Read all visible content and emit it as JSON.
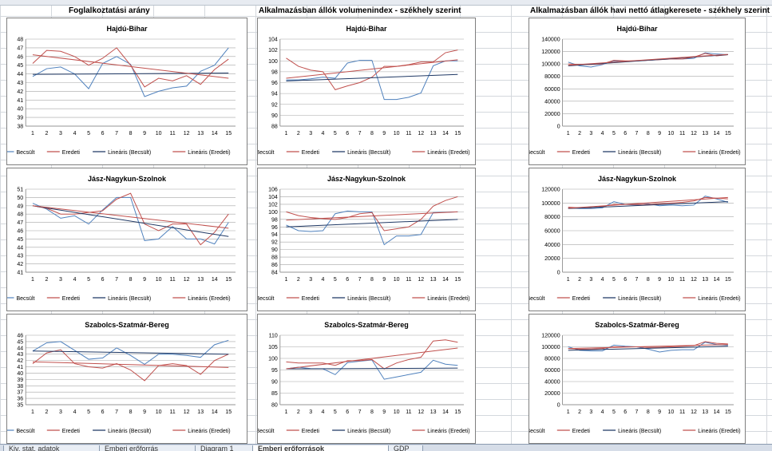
{
  "sections": [
    {
      "title": "Foglalkoztatási arány"
    },
    {
      "title": "Alkalmazásban állók volumenindex - székhely szerint"
    },
    {
      "title": "Alkalmazásban állók havi nettó átlagkeresete - székhely szerint"
    }
  ],
  "tabs": [
    "Kiv. stat. adatok",
    "Emberi erőforrás",
    "Diagram 1",
    "Emberi erőforrások",
    "GDP"
  ],
  "chart_data": [
    {
      "type": "line",
      "title": "Hajdú-Bihar",
      "x": [
        1,
        2,
        3,
        4,
        5,
        6,
        7,
        8,
        9,
        10,
        11,
        12,
        13,
        14,
        15
      ],
      "ylim": [
        38,
        48
      ],
      "yticks": [
        38,
        39,
        40,
        41,
        42,
        43,
        44,
        45,
        46,
        47,
        48
      ],
      "series": [
        {
          "name": "Becsült",
          "color": "#4f81bd",
          "values": [
            43.7,
            44.6,
            44.8,
            44.0,
            42.3,
            45.2,
            46.0,
            45.1,
            41.4,
            42.0,
            42.4,
            42.6,
            44.3,
            45.0,
            47.0
          ]
        },
        {
          "name": "Eredeti",
          "color": "#c0504d",
          "values": [
            45.2,
            46.7,
            46.6,
            46.0,
            45.0,
            45.8,
            47.0,
            45.0,
            42.5,
            43.5,
            43.2,
            43.8,
            42.8,
            44.5,
            45.7
          ]
        },
        {
          "name": "Lineáris (Becsült)",
          "color": "#1f3864",
          "trend": [
            43.95,
            44.1
          ]
        },
        {
          "name": "Lineáris (Eredeti)",
          "color": "#c0504d",
          "trend": [
            46.2,
            43.5
          ]
        }
      ]
    },
    {
      "type": "line",
      "title": "Hajdú-Bihar",
      "x": [
        1,
        2,
        3,
        4,
        5,
        6,
        7,
        8,
        9,
        10,
        11,
        12,
        13,
        14,
        15
      ],
      "ylim": [
        88,
        104
      ],
      "yticks": [
        88,
        90,
        92,
        94,
        96,
        98,
        100,
        102,
        104
      ],
      "series": [
        {
          "name": "Becsült",
          "color": "#4f81bd",
          "values": [
            96.5,
            96.5,
            96.7,
            97.0,
            96.8,
            99.6,
            100.1,
            100.1,
            92.9,
            92.9,
            93.3,
            94.1,
            99.1,
            100.0,
            100.0
          ]
        },
        {
          "name": "Eredeti",
          "color": "#c0504d",
          "values": [
            100.5,
            99.0,
            98.3,
            98.0,
            94.7,
            95.4,
            96.0,
            97.0,
            99.0,
            99.0,
            99.3,
            99.8,
            99.8,
            101.5,
            102.0
          ]
        },
        {
          "name": "Lineáris (Becsült)",
          "color": "#1f3864",
          "trend": [
            96.3,
            97.5
          ]
        },
        {
          "name": "Lineáris (Eredeti)",
          "color": "#c0504d",
          "trend": [
            96.8,
            100.2
          ]
        }
      ]
    },
    {
      "type": "line",
      "title": "Hajdú-Bihar",
      "x": [
        1,
        2,
        3,
        4,
        5,
        6,
        7,
        8,
        9,
        10,
        11,
        12,
        13,
        14,
        15
      ],
      "ylim": [
        0,
        140000
      ],
      "yticks": [
        0,
        20000,
        40000,
        60000,
        80000,
        100000,
        120000,
        140000
      ],
      "series": [
        {
          "name": "Becsült",
          "color": "#4f81bd",
          "values": [
            103000,
            97000,
            95000,
            99000,
            105000,
            104000,
            105000,
            106000,
            107000,
            108000,
            108000,
            109000,
            118000,
            116000,
            115000
          ]
        },
        {
          "name": "Eredeti",
          "color": "#c0504d",
          "values": [
            100000,
            99000,
            99000,
            100000,
            106000,
            105000,
            105000,
            106000,
            107000,
            108000,
            108000,
            111000,
            117000,
            113000,
            115000
          ]
        },
        {
          "name": "Lineáris (Becsült)",
          "color": "#1f3864",
          "trend": [
            97000,
            115000
          ]
        },
        {
          "name": "Lineáris (Eredeti)",
          "color": "#c0504d",
          "trend": [
            98000,
            115500
          ]
        }
      ]
    },
    {
      "type": "line",
      "title": "Jász-Nagykun-Szolnok",
      "x": [
        1,
        2,
        3,
        4,
        5,
        6,
        7,
        8,
        9,
        10,
        11,
        12,
        13,
        14,
        15
      ],
      "ylim": [
        41,
        51
      ],
      "yticks": [
        41,
        42,
        43,
        44,
        45,
        46,
        47,
        48,
        49,
        50,
        51
      ],
      "series": [
        {
          "name": "Becsült",
          "color": "#4f81bd",
          "values": [
            49.3,
            48.6,
            47.5,
            47.8,
            46.8,
            48.5,
            50.0,
            50.0,
            44.8,
            45.0,
            46.5,
            45.0,
            45.0,
            44.4,
            47.0
          ]
        },
        {
          "name": "Eredeti",
          "color": "#c0504d",
          "values": [
            49.0,
            48.7,
            48.0,
            48.0,
            48.2,
            48.4,
            49.8,
            50.5,
            46.8,
            46.0,
            46.8,
            46.8,
            44.3,
            45.8,
            48.0
          ]
        },
        {
          "name": "Lineáris (Becsült)",
          "color": "#1f3864",
          "trend": [
            49.0,
            45.3
          ]
        },
        {
          "name": "Lineáris (Eredeti)",
          "color": "#c0504d",
          "trend": [
            49.0,
            46.3
          ]
        }
      ]
    },
    {
      "type": "line",
      "title": "Jász-Nagykun-Szolnok",
      "x": [
        1,
        2,
        3,
        4,
        5,
        6,
        7,
        8,
        9,
        10,
        11,
        12,
        13,
        14,
        15
      ],
      "ylim": [
        84,
        106
      ],
      "yticks": [
        84,
        86,
        88,
        90,
        92,
        94,
        96,
        98,
        100,
        102,
        104,
        106
      ],
      "series": [
        {
          "name": "Becsült",
          "color": "#4f81bd",
          "values": [
            96.5,
            95.0,
            94.8,
            95.0,
            99.5,
            100.2,
            100.0,
            100.0,
            91.3,
            93.6,
            93.6,
            94.0,
            99.8,
            99.9,
            100.0
          ]
        },
        {
          "name": "Eredeti",
          "color": "#c0504d",
          "values": [
            100.0,
            99.0,
            98.5,
            98.2,
            98.0,
            98.5,
            99.5,
            99.8,
            95.0,
            95.5,
            96.0,
            98.0,
            101.5,
            103.0,
            104.0
          ]
        },
        {
          "name": "Lineáris (Becsült)",
          "color": "#1f3864",
          "trend": [
            96.0,
            98.0
          ]
        },
        {
          "name": "Lineáris (Eredeti)",
          "color": "#c0504d",
          "trend": [
            97.8,
            100.0
          ]
        }
      ]
    },
    {
      "type": "line",
      "title": "Jász-Nagykun-Szolnok",
      "x": [
        1,
        2,
        3,
        4,
        5,
        6,
        7,
        8,
        9,
        10,
        11,
        12,
        13,
        14,
        15
      ],
      "ylim": [
        0,
        120000
      ],
      "yticks": [
        0,
        20000,
        40000,
        60000,
        80000,
        100000,
        120000
      ],
      "series": [
        {
          "name": "Becsült",
          "color": "#4f81bd",
          "values": [
            93000,
            92000,
            92000,
            93000,
            102000,
            98000,
            97000,
            99000,
            96000,
            97000,
            96000,
            97000,
            110000,
            106000,
            101000
          ]
        },
        {
          "name": "Eredeti",
          "color": "#c0504d",
          "values": [
            94000,
            93000,
            93000,
            95000,
            98000,
            98000,
            98000,
            98000,
            99000,
            100000,
            101000,
            103000,
            108000,
            107000,
            106000
          ]
        },
        {
          "name": "Lineáris (Becsült)",
          "color": "#1f3864",
          "trend": [
            92000,
            102000
          ]
        },
        {
          "name": "Lineáris (Eredeti)",
          "color": "#c0504d",
          "trend": [
            92500,
            108000
          ]
        }
      ]
    },
    {
      "type": "line",
      "title": "Szabolcs-Szatmár-Bereg",
      "x": [
        1,
        2,
        3,
        4,
        5,
        6,
        7,
        8,
        9,
        10,
        11,
        12,
        13,
        14,
        15
      ],
      "ylim": [
        35,
        46
      ],
      "yticks": [
        35,
        36,
        37,
        38,
        39,
        40,
        41,
        42,
        43,
        44,
        45,
        46
      ],
      "series": [
        {
          "name": "Becsült",
          "color": "#4f81bd",
          "values": [
            43.5,
            44.8,
            45.0,
            43.6,
            42.2,
            42.4,
            44.0,
            42.8,
            41.4,
            43.0,
            43.0,
            42.8,
            42.5,
            44.5,
            45.2
          ]
        },
        {
          "name": "Eredeti",
          "color": "#c0504d",
          "values": [
            41.5,
            43.2,
            43.7,
            41.5,
            41.0,
            40.8,
            41.5,
            40.5,
            38.8,
            41.2,
            41.5,
            41.2,
            39.8,
            42.0,
            43.0
          ]
        },
        {
          "name": "Lineáris (Becsült)",
          "color": "#1f3864",
          "trend": [
            43.5,
            43.0
          ]
        },
        {
          "name": "Lineáris (Eredeti)",
          "color": "#c0504d",
          "trend": [
            41.8,
            40.9
          ]
        }
      ]
    },
    {
      "type": "line",
      "title": "Szabolcs-Szatmár-Bereg",
      "x": [
        1,
        2,
        3,
        4,
        5,
        6,
        7,
        8,
        9,
        10,
        11,
        12,
        13,
        14,
        15
      ],
      "ylim": [
        80,
        110
      ],
      "yticks": [
        80,
        85,
        90,
        95,
        100,
        105,
        110
      ],
      "series": [
        {
          "name": "Becsült",
          "color": "#4f81bd",
          "values": [
            95.5,
            96.2,
            95.6,
            95.5,
            93.0,
            98.2,
            98.8,
            99.3,
            91.0,
            92.0,
            93.0,
            94.0,
            99.2,
            97.5,
            97.0
          ]
        },
        {
          "name": "Eredeti",
          "color": "#c0504d",
          "values": [
            98.5,
            98.0,
            98.0,
            98.0,
            97.0,
            99.0,
            99.0,
            99.5,
            95.5,
            98.0,
            99.5,
            100.5,
            107.5,
            108.0,
            107.0
          ]
        },
        {
          "name": "Lineáris (Becsült)",
          "color": "#1f3864",
          "trend": [
            95.5,
            95.8
          ]
        },
        {
          "name": "Lineáris (Eredeti)",
          "color": "#c0504d",
          "trend": [
            95.5,
            104.5
          ]
        }
      ]
    },
    {
      "type": "line",
      "title": "Szabolcs-Szatmár-Bereg",
      "x": [
        1,
        2,
        3,
        4,
        5,
        6,
        7,
        8,
        9,
        10,
        11,
        12,
        13,
        14,
        15
      ],
      "ylim": [
        0,
        120000
      ],
      "yticks": [
        0,
        20000,
        40000,
        60000,
        80000,
        100000,
        120000
      ],
      "series": [
        {
          "name": "Becsült",
          "color": "#4f81bd",
          "values": [
            100000,
            94000,
            93000,
            93000,
            103000,
            101000,
            100000,
            96000,
            91000,
            94000,
            95000,
            95000,
            108000,
            104000,
            103000
          ]
        },
        {
          "name": "Eredeti",
          "color": "#c0504d",
          "values": [
            97000,
            96000,
            96000,
            97000,
            100000,
            100000,
            100000,
            99000,
            99000,
            100000,
            101000,
            102000,
            109000,
            106000,
            105000
          ]
        },
        {
          "name": "Lineáris (Becsült)",
          "color": "#1f3864",
          "trend": [
            94000,
            101000
          ]
        },
        {
          "name": "Lineáris (Eredeti)",
          "color": "#c0504d",
          "trend": [
            97000,
            104000
          ]
        }
      ]
    }
  ]
}
